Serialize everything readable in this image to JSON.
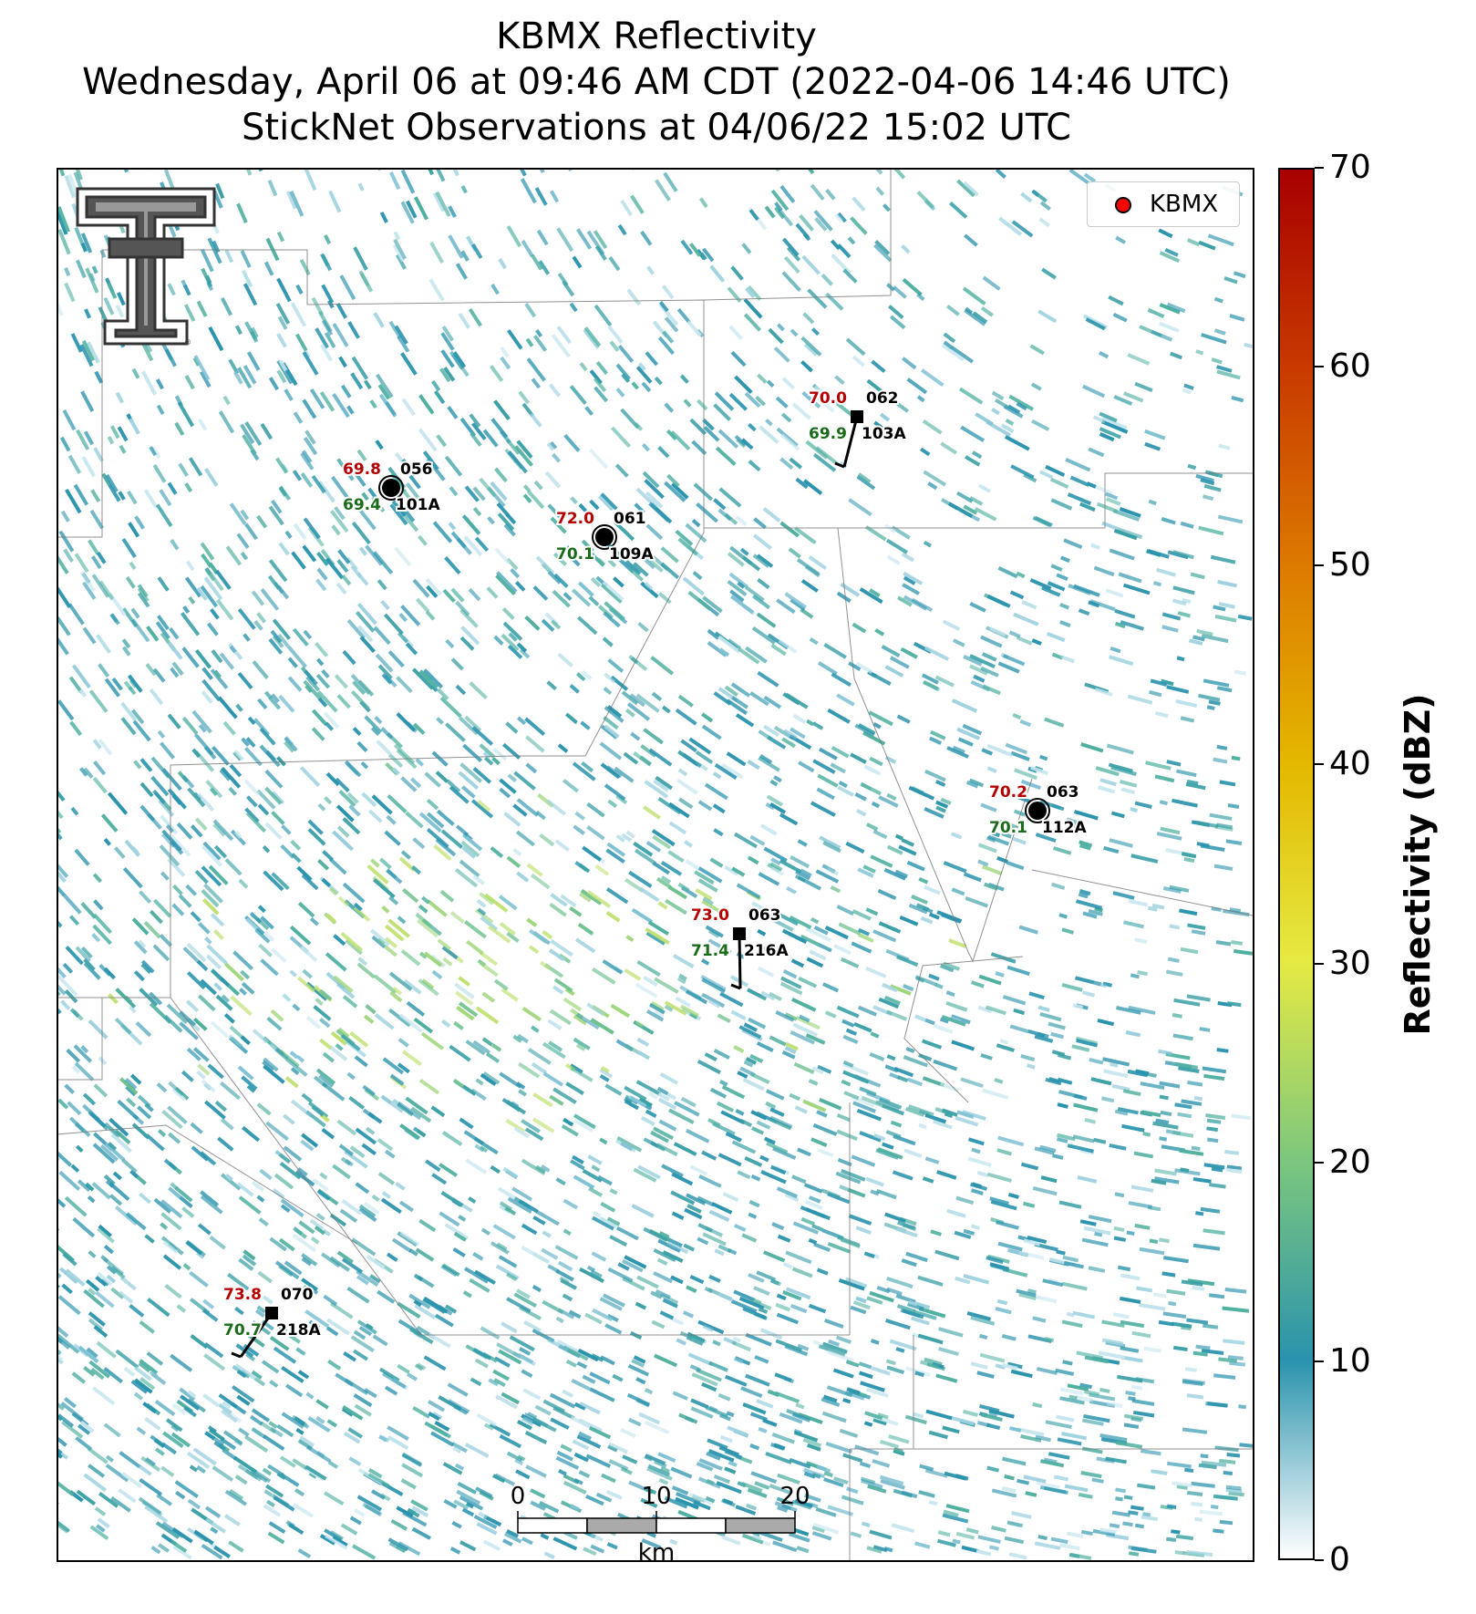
{
  "title": {
    "line1": "KBMX Reflectivity",
    "line2": "Wednesday, April 06 at 09:46 AM CDT (2022-04-06 14:46 UTC)",
    "line3": "StickNet Observations at 04/06/22 15:02 UTC"
  },
  "legend": {
    "label": "KBMX",
    "marker_color": "#ff0000"
  },
  "logo": {
    "name": "texas-tech-double-t-logo"
  },
  "colorbar": {
    "label": "Reflectivity (dBZ)",
    "ticks": [
      "0",
      "10",
      "20",
      "30",
      "40",
      "50",
      "60",
      "70"
    ],
    "colors": [
      "#ffffff",
      "#2a93ad",
      "#7cc77e",
      "#e5ea43",
      "#e4b800",
      "#dd7a00",
      "#c83a00",
      "#a80000"
    ]
  },
  "scale_bar": {
    "ticks": [
      "0",
      "10",
      "20"
    ],
    "unit": "km"
  },
  "stations": [
    {
      "id": "101A",
      "temp": "69.8",
      "dew": "69.4",
      "wind_dir": "056",
      "marker": "circle"
    },
    {
      "id": "109A",
      "temp": "72.0",
      "dew": "70.1",
      "wind_dir": "061",
      "marker": "circle"
    },
    {
      "id": "103A",
      "temp": "70.0",
      "dew": "69.9",
      "wind_dir": "062",
      "marker": "square"
    },
    {
      "id": "112A",
      "temp": "70.2",
      "dew": "70.1",
      "wind_dir": "063",
      "marker": "circle"
    },
    {
      "id": "216A",
      "temp": "73.0",
      "dew": "71.4",
      "wind_dir": "063",
      "marker": "square"
    },
    {
      "id": "218A",
      "temp": "73.8",
      "dew": "70.7",
      "wind_dir": "070",
      "marker": "square"
    }
  ],
  "colors": {
    "temp": "#b40000",
    "dew": "#1a6b1a",
    "station": "#000000"
  }
}
